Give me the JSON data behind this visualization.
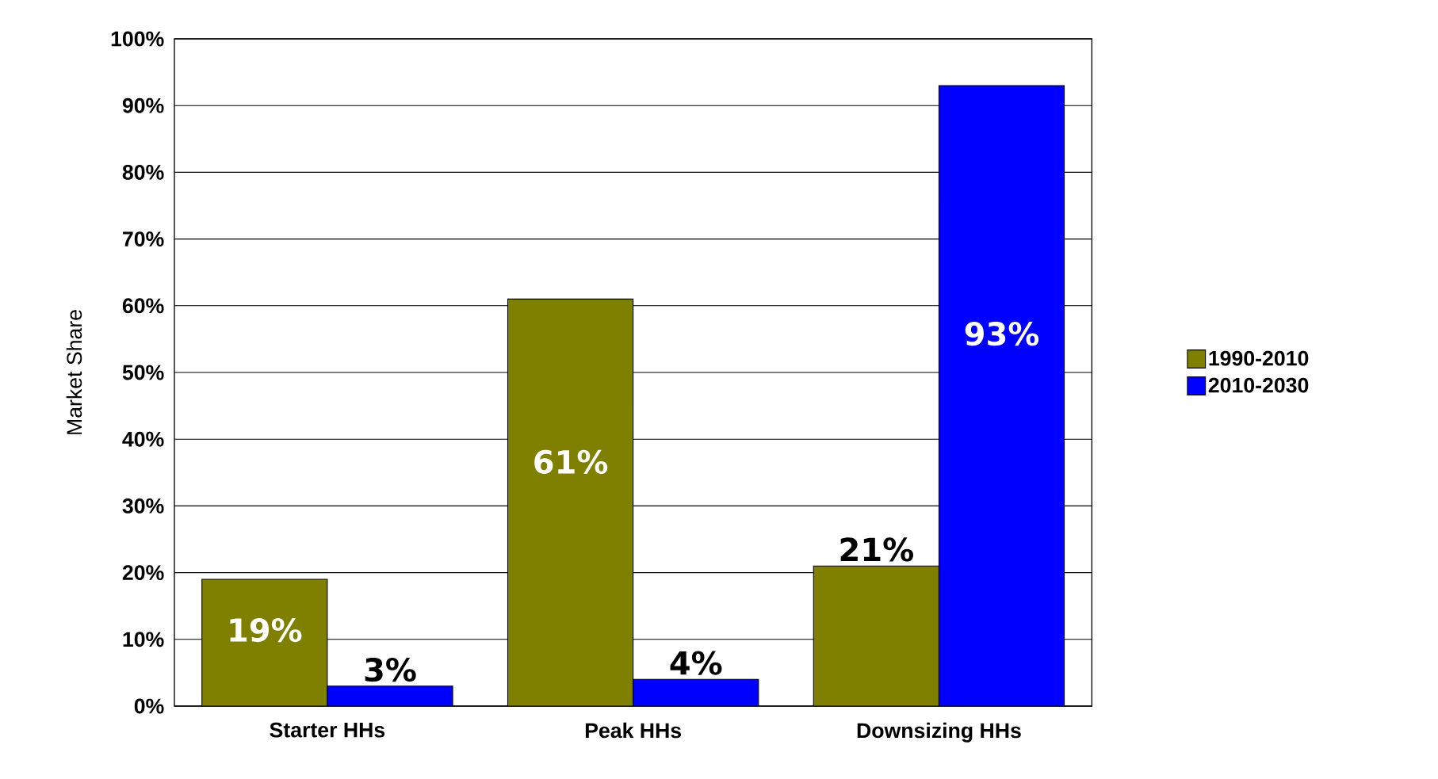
{
  "chart_data": {
    "type": "bar",
    "ylabel": "Market Share",
    "categories": [
      "Starter HHs",
      "Peak HHs",
      "Downsizing HHs"
    ],
    "series": [
      {
        "name": "1990-2010",
        "color": "#808000",
        "values": [
          19,
          61,
          21
        ],
        "value_labels": [
          "19%",
          "61%",
          "21%"
        ]
      },
      {
        "name": "2010-2030",
        "color": "#0000ff",
        "values": [
          3,
          4,
          93
        ],
        "value_labels": [
          "3%",
          "4%",
          "93%"
        ]
      }
    ],
    "ylim": [
      0,
      100
    ],
    "yticks": [
      {
        "value": 0,
        "label": "0%"
      },
      {
        "value": 10,
        "label": "10%"
      },
      {
        "value": 20,
        "label": "20%"
      },
      {
        "value": 30,
        "label": "30%"
      },
      {
        "value": 40,
        "label": "40%"
      },
      {
        "value": 50,
        "label": "50%"
      },
      {
        "value": 60,
        "label": "60%"
      },
      {
        "value": 70,
        "label": "70%"
      },
      {
        "value": 80,
        "label": "80%"
      },
      {
        "value": 90,
        "label": "90%"
      },
      {
        "value": 100,
        "label": "100%"
      }
    ],
    "grid": "y",
    "legend": "right"
  }
}
